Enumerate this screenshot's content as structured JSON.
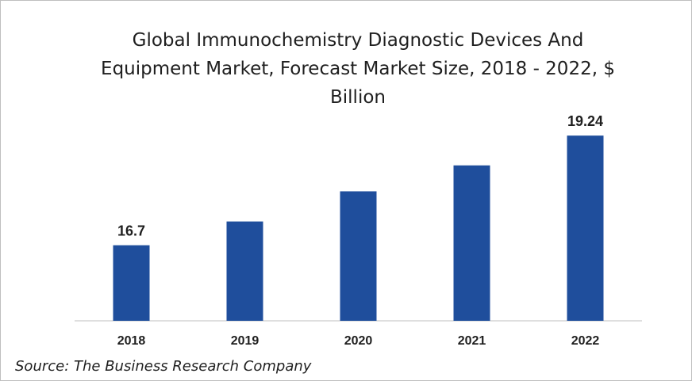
{
  "chart_data": {
    "type": "bar",
    "title_lines": [
      "Global Immunochemistry Diagnostic Devices And",
      "Equipment Market, Forecast Market Size, 2018 - 2022, $",
      "Billion"
    ],
    "categories": [
      "2018",
      "2019",
      "2020",
      "2021",
      "2022"
    ],
    "values": [
      16.7,
      17.25,
      17.95,
      18.55,
      19.24
    ],
    "data_labels": [
      "16.7",
      "",
      "",
      "",
      "19.24"
    ],
    "ylim": [
      14.95,
      19.5
    ],
    "grid": false,
    "legend": "none",
    "bar_color": "#1f4e9c"
  },
  "source": "Source: The Business Research Company"
}
